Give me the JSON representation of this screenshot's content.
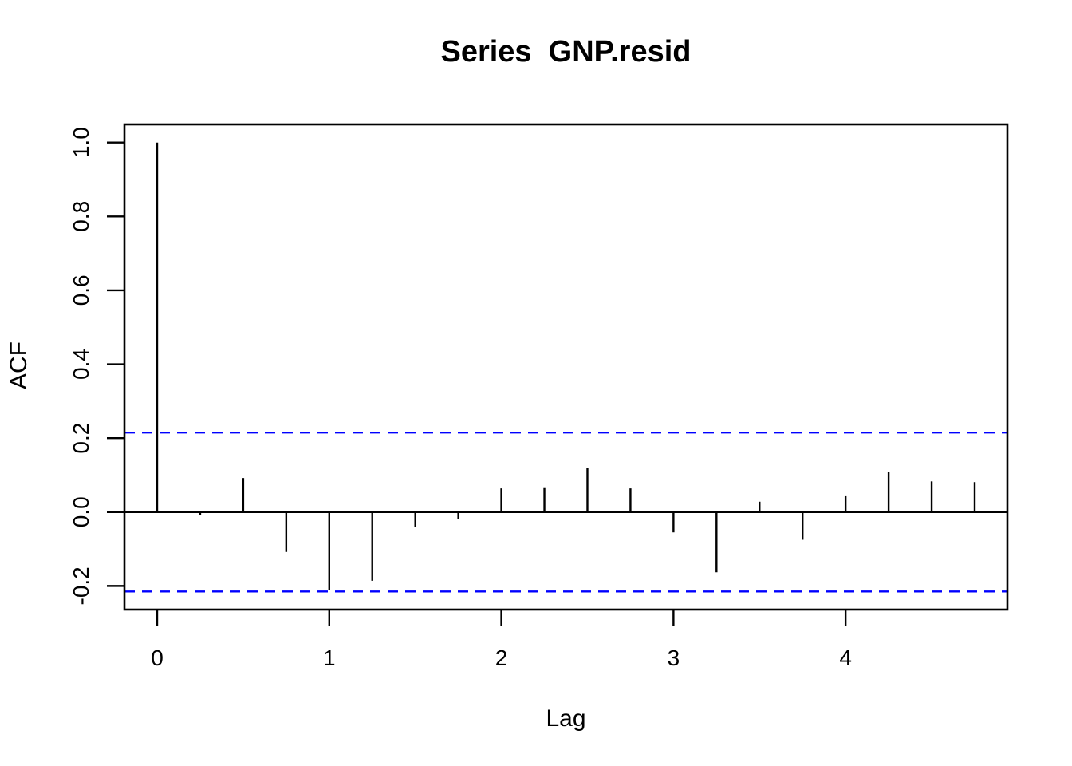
{
  "chart_data": {
    "type": "bar",
    "subtype": "acf-stick-plot",
    "title": "Series  GNP.resid",
    "xlabel": "Lag",
    "ylabel": "ACF",
    "x": [
      0,
      0.25,
      0.5,
      0.75,
      1,
      1.25,
      1.5,
      1.75,
      2,
      2.25,
      2.5,
      2.75,
      3,
      3.25,
      3.5,
      3.75,
      4,
      4.25,
      4.5,
      4.75
    ],
    "acf": [
      1.0,
      -0.007,
      0.092,
      -0.108,
      -0.211,
      -0.186,
      -0.04,
      -0.019,
      0.064,
      0.067,
      0.12,
      0.064,
      -0.055,
      -0.163,
      0.028,
      -0.075,
      0.045,
      0.108,
      0.083,
      0.081
    ],
    "confidence_bound": 0.215,
    "ci_line_style": "dashed",
    "x_ticks": [
      {
        "v": 0,
        "label": "0"
      },
      {
        "v": 1,
        "label": "1"
      },
      {
        "v": 2,
        "label": "2"
      },
      {
        "v": 3,
        "label": "3"
      },
      {
        "v": 4,
        "label": "4"
      }
    ],
    "y_ticks": [
      {
        "v": -0.2,
        "label": "-0.2"
      },
      {
        "v": 0.0,
        "label": "0.0"
      },
      {
        "v": 0.2,
        "label": "0.2"
      },
      {
        "v": 0.4,
        "label": "0.4"
      },
      {
        "v": 0.6,
        "label": "0.6"
      },
      {
        "v": 0.8,
        "label": "0.8"
      },
      {
        "v": 1.0,
        "label": "1.0"
      }
    ],
    "xlim": [
      -0.19,
      4.94
    ],
    "ylim": [
      -0.264,
      1.049
    ],
    "grid": false,
    "colors": {
      "bar": "#000000",
      "axis": "#000000",
      "ci_line": "#0000FF",
      "background": "#FFFFFF"
    }
  }
}
